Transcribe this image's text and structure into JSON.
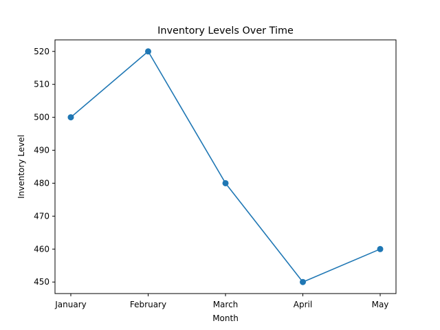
{
  "chart_data": {
    "type": "line",
    "title": "Inventory Levels Over Time",
    "xlabel": "Month",
    "ylabel": "Inventory Level",
    "categories": [
      "January",
      "February",
      "March",
      "April",
      "May"
    ],
    "series": [
      {
        "values": [
          500,
          520,
          480,
          450,
          460
        ],
        "color": "#1f77b4",
        "marker": "circle"
      }
    ],
    "ylim": [
      446.5,
      523.5
    ],
    "yticks": [
      450,
      460,
      470,
      480,
      490,
      500,
      510,
      520
    ],
    "grid": false,
    "legend": "none"
  }
}
